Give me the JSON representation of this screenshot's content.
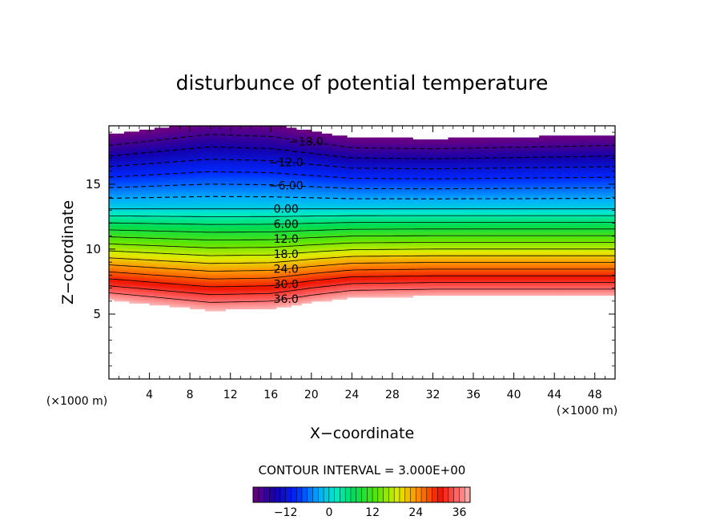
{
  "chart_data": {
    "type": "heatmap",
    "title": "disturbunce of potential temperature",
    "xlabel": "X−coordinate",
    "ylabel": "Z−coordinate",
    "x_unit": "(×1000 m)",
    "y_unit": "(×1000 m)",
    "xlim": [
      0,
      50
    ],
    "ylim": [
      0,
      19.5
    ],
    "x_ticks": [
      "4",
      "8",
      "12",
      "16",
      "20",
      "24",
      "28",
      "32",
      "36",
      "40",
      "44",
      "48"
    ],
    "y_ticks": [
      "5",
      "10",
      "15"
    ],
    "colorbar": {
      "label": "CONTOUR INTERVAL = 3.000E+00",
      "ticks": [
        "−12",
        "0",
        "12",
        "24",
        "36"
      ],
      "range": [
        -21,
        39
      ]
    },
    "contour_interval": 3.0,
    "contour_labels": [
      "−18.0",
      "−12.0",
      "−6.00",
      "0.00",
      "6.00",
      "12.0",
      "18.0",
      "24.0",
      "30.0",
      "36.0"
    ],
    "field_structure": {
      "positive_layer_bottom_z": [
        [
          0,
          6.1
        ],
        [
          10,
          5.3
        ],
        [
          16,
          5.4
        ],
        [
          20,
          5.9
        ],
        [
          24,
          6.3
        ],
        [
          32,
          6.4
        ],
        [
          50,
          6.4
        ]
      ],
      "zero_contour_z": 13.1,
      "negative_layer_top_z": [
        [
          0,
          18.8
        ],
        [
          10,
          19.8
        ],
        [
          16,
          19.6
        ],
        [
          24,
          18.6
        ],
        [
          32,
          18.5
        ],
        [
          50,
          18.8
        ]
      ],
      "value_at_zero": 0
    }
  }
}
